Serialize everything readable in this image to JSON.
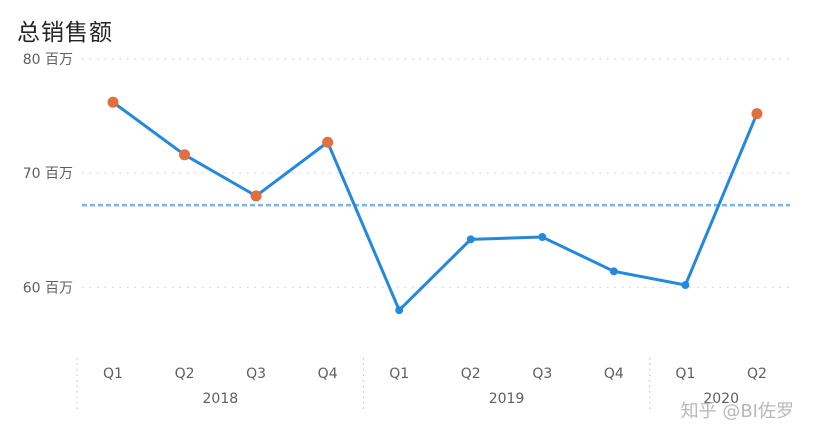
{
  "chart_data": {
    "type": "line",
    "title": "总销售额",
    "xlabel": "",
    "ylabel": "",
    "ylim": [
      55.3,
      81.3
    ],
    "y_ticks": [
      {
        "value": 60,
        "label": "60 百万"
      },
      {
        "value": 70,
        "label": "70 百万"
      },
      {
        "value": 80,
        "label": "80 百万"
      }
    ],
    "categories": [
      "Q1",
      "Q2",
      "Q3",
      "Q4",
      "Q1",
      "Q2",
      "Q3",
      "Q4",
      "Q1",
      "Q2"
    ],
    "groups": [
      {
        "label": "2018",
        "count": 4
      },
      {
        "label": "2019",
        "count": 4
      },
      {
        "label": "2020",
        "count": 2
      }
    ],
    "series": [
      {
        "values": [
          76.2,
          71.6,
          68.0,
          72.7,
          58.0,
          64.2,
          64.4,
          61.4,
          60.2,
          75.2
        ],
        "highlight": [
          true,
          true,
          true,
          true,
          false,
          false,
          false,
          false,
          false,
          true
        ]
      }
    ],
    "reference_line": {
      "value": 67.2,
      "style": "dashed"
    },
    "grid": true,
    "legend": "none",
    "colors": {
      "line": "#2488dc",
      "highlight": "#e16f3f",
      "reference": "#6fb9ec",
      "grid": "#d0d0d0"
    }
  },
  "watermark": "知乎 @BI佐罗"
}
